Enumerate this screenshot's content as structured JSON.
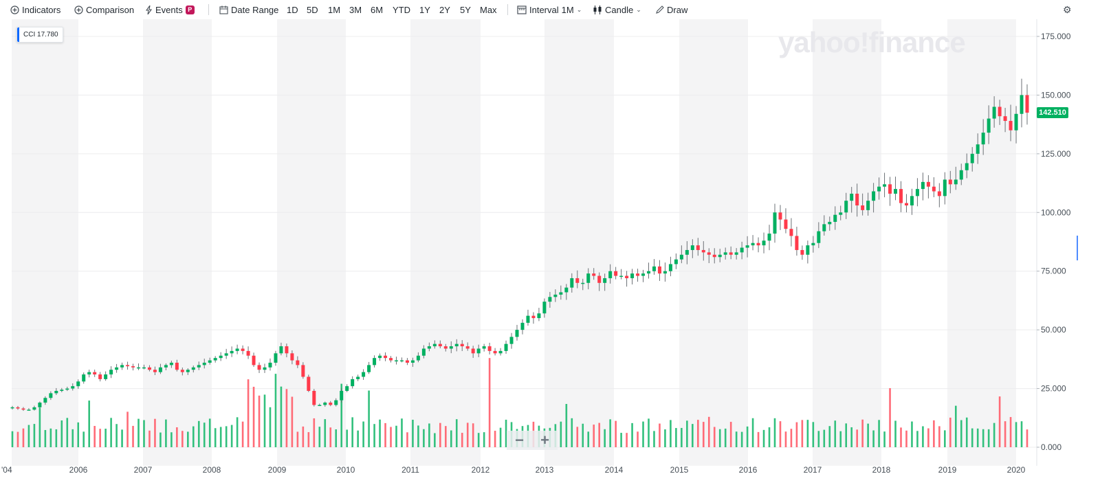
{
  "toolbar": {
    "indicators": "Indicators",
    "comparison": "Comparison",
    "events": "Events",
    "events_badge": "P",
    "date_range": "Date Range",
    "ranges": [
      "1D",
      "5D",
      "1M",
      "3M",
      "6M",
      "YTD",
      "1Y",
      "2Y",
      "5Y",
      "Max"
    ],
    "interval_label": "Interval",
    "interval_value": "1M",
    "chart_type": "Candle",
    "draw": "Draw"
  },
  "ticker": {
    "symbol": "CCI",
    "value": "17.780"
  },
  "watermark": "yahoo!finance",
  "last_price": "142.510",
  "colors": {
    "up": "#00b061",
    "down": "#ff3a4b",
    "accent": "#0f69ff",
    "band": "#f4f4f5"
  },
  "chart_data": {
    "type": "candlestick",
    "x_labels": [
      "'04",
      "2006",
      "2007",
      "2008",
      "2009",
      "2010",
      "2011",
      "2012",
      "2013",
      "2014",
      "2015",
      "2016",
      "2017",
      "2018",
      "2019",
      "2020"
    ],
    "y_ticks": [
      "175.000",
      "150.000",
      "125.000",
      "100.000",
      "75.000",
      "50.000",
      "25.000",
      "0.000"
    ],
    "ylim": [
      0,
      180
    ],
    "interval": "1M",
    "close_series": [
      17,
      16.5,
      16,
      16,
      17,
      19,
      21,
      23,
      24,
      24.5,
      25,
      26,
      28,
      31,
      32,
      31,
      29,
      31,
      33,
      34,
      35,
      34.5,
      34,
      34,
      34,
      33,
      32,
      34,
      35,
      36,
      33,
      32,
      33,
      34,
      35,
      36,
      37,
      38,
      39,
      40,
      41,
      42,
      41,
      39,
      35,
      33,
      34,
      36,
      40,
      43,
      40,
      37,
      35,
      30,
      24,
      18,
      18,
      19,
      18,
      20,
      24,
      26,
      29,
      30,
      32,
      35,
      38,
      39,
      38,
      37,
      37,
      37,
      36,
      37,
      39,
      42,
      43,
      44,
      43,
      42,
      43,
      44,
      43,
      42,
      40,
      42,
      43,
      41,
      40,
      41,
      44,
      47,
      50,
      53,
      56,
      55,
      57,
      62,
      64,
      65,
      66,
      68,
      72,
      70,
      70,
      74,
      73,
      70,
      72,
      75,
      73,
      73,
      72,
      74,
      73,
      74,
      75,
      77,
      74,
      75,
      78,
      80,
      82,
      84,
      86,
      84,
      83,
      82,
      81,
      82,
      83,
      82,
      83,
      85,
      86,
      87,
      86,
      88,
      91,
      100,
      97,
      93,
      90,
      84,
      82,
      86,
      87,
      92,
      95,
      96,
      99,
      100,
      105,
      108,
      103,
      101,
      105,
      109,
      111,
      112,
      108,
      110,
      104,
      103,
      107,
      110,
      113,
      111,
      109,
      107,
      114,
      112,
      114,
      118,
      121,
      125,
      129,
      134,
      140,
      145,
      141,
      139,
      135,
      142,
      150,
      142.51
    ],
    "volume_max": 40,
    "volume_ticks": [
      0,
      25
    ]
  }
}
